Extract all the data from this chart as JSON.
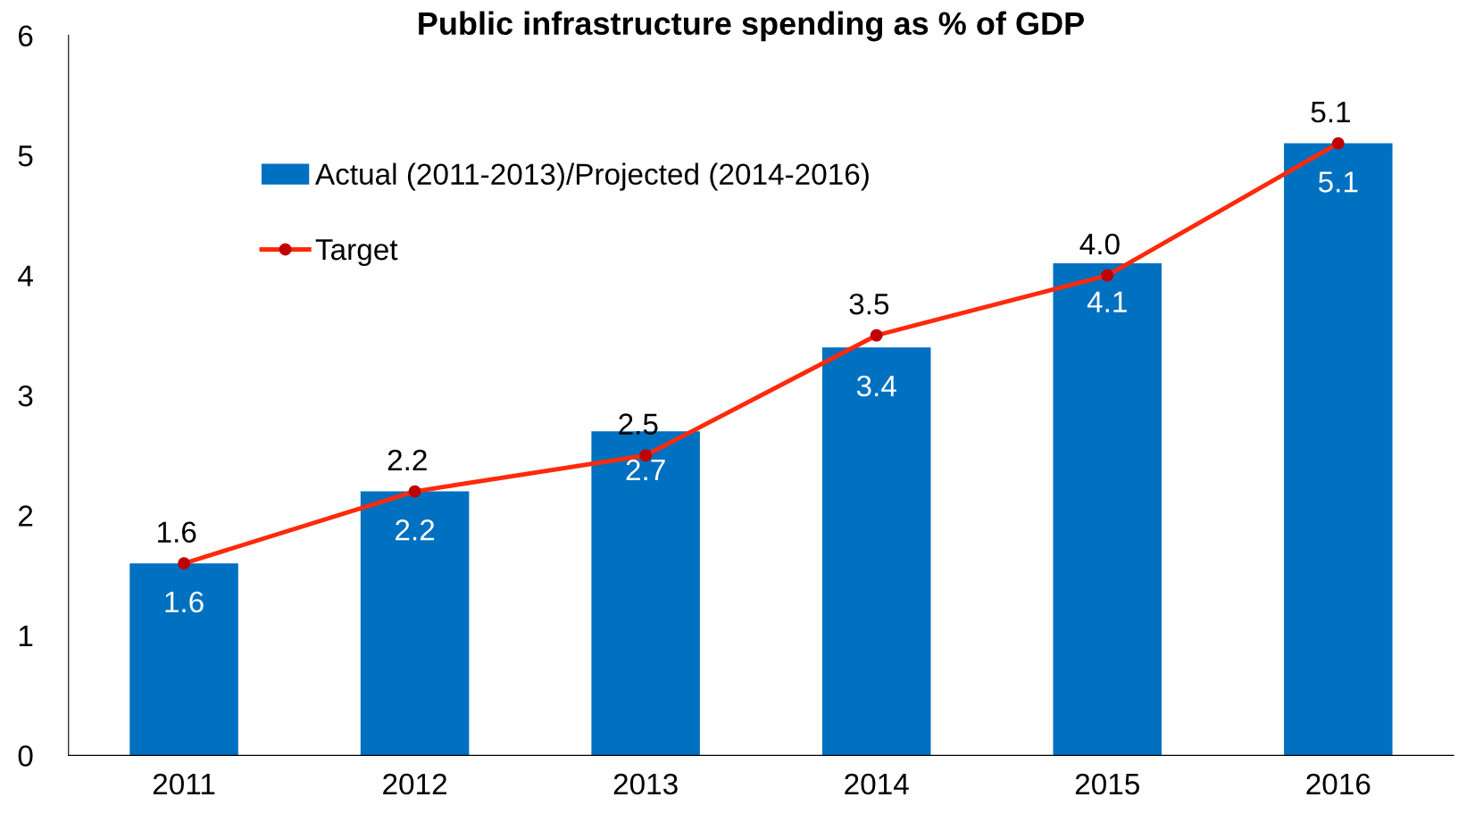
{
  "chart_data": {
    "type": "bar",
    "title": "Public infrastructure spending as % of GDP",
    "categories": [
      "2011",
      "2012",
      "2013",
      "2014",
      "2015",
      "2016"
    ],
    "series": [
      {
        "name": "Actual (2011-2013)/Projected (2014-2016)",
        "color": "#0070c0",
        "values": [
          1.6,
          2.2,
          2.7,
          3.4,
          4.1,
          5.1
        ]
      },
      {
        "name": "Target",
        "type": "line",
        "color": "#ff2a0a",
        "values": [
          1.6,
          2.2,
          2.5,
          3.5,
          4.0,
          5.1
        ],
        "value_labels": [
          "1.6",
          "2.2",
          "2.5",
          "3.5",
          "4.0",
          "5.1"
        ],
        "marker": "circle",
        "line_style": "solid"
      }
    ],
    "ylim": [
      0,
      6
    ],
    "yticks": [
      0,
      1,
      2,
      3,
      4,
      5,
      6
    ],
    "grid": false,
    "legend": "top left",
    "data_labels": true
  }
}
